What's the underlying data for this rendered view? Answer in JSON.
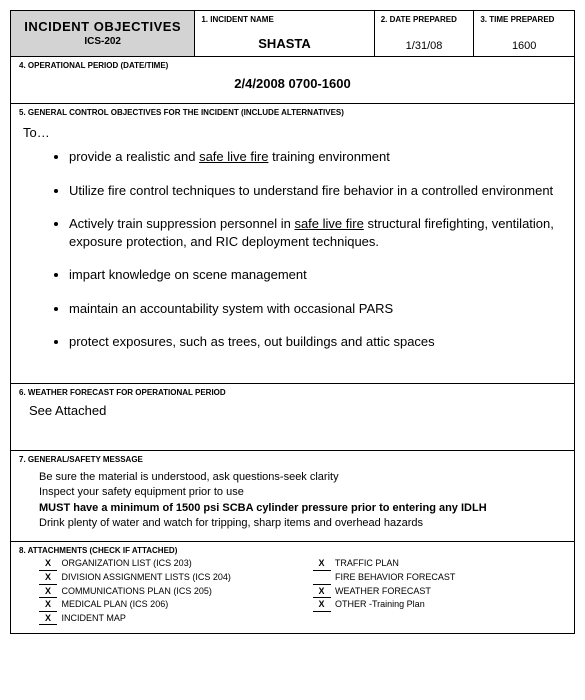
{
  "header": {
    "title": "INCIDENT OBJECTIVES",
    "form_code": "ICS-202",
    "incident_name_label": "1.    INCIDENT NAME",
    "incident_name": "SHASTA",
    "date_label": "2.    DATE PREPARED",
    "date": "1/31/08",
    "time_label": "3.    TIME PREPARED",
    "time": "1600"
  },
  "section4": {
    "label": "4.    OPERATIONAL PERIOD (DATE/TIME)",
    "value": "2/4/2008 0700-1600"
  },
  "section5": {
    "label": "5.   GENERAL CONTROL OBJECTIVES FOR THE INCIDENT (INCLUDE ALTERNATIVES)",
    "intro": "To…",
    "items": [
      {
        "pre": "provide a realistic and ",
        "u": "safe live fire",
        "post": " training environment"
      },
      {
        "pre": "Utilize fire control techniques to understand fire behavior in a controlled environment",
        "u": "",
        "post": ""
      },
      {
        "pre": "Actively train suppression personnel in ",
        "u": "safe live fire",
        "post": " structural firefighting, ventilation, exposure protection, and RIC deployment techniques."
      },
      {
        "pre": "impart knowledge on scene management",
        "u": "",
        "post": ""
      },
      {
        "pre": "maintain an accountability system with occasional PARS",
        "u": "",
        "post": ""
      },
      {
        "pre": "protect exposures, such as trees, out buildings and attic spaces",
        "u": "",
        "post": ""
      }
    ]
  },
  "section6": {
    "label": "6.     WEATHER FORECAST FOR OPERATIONAL PERIOD",
    "body": "See Attached"
  },
  "section7": {
    "label": "7.     GENERAL/SAFETY MESSAGE",
    "line1": "Be sure the material is understood, ask questions-seek clarity",
    "line2": "Inspect your safety equipment prior to use",
    "line3": "MUST have a minimum of 1500 psi SCBA cylinder pressure prior to entering any IDLH",
    "line4": "Drink plenty of water and watch for tripping, sharp items and overhead hazards"
  },
  "section8": {
    "label": "8.     ATTACHMENTS (CHECK IF ATTACHED)",
    "left": [
      {
        "x": "X",
        "label": "ORGANIZATION LIST (ICS 203)"
      },
      {
        "x": "X",
        "label": "DIVISION ASSIGNMENT LISTS (ICS 204)"
      },
      {
        "x": "X",
        "label": "COMMUNICATIONS PLAN (ICS 205)"
      },
      {
        "x": "X",
        "label": "MEDICAL PLAN (ICS 206)"
      },
      {
        "x": "X",
        "label": "INCIDENT MAP"
      }
    ],
    "right": [
      {
        "x": "X",
        "label": "TRAFFIC PLAN"
      },
      {
        "x": "",
        "label": "FIRE BEHAVIOR FORECAST"
      },
      {
        "x": "X",
        "label": "WEATHER FORECAST"
      },
      {
        "x": "X",
        "label": "OTHER -Training Plan"
      }
    ]
  }
}
